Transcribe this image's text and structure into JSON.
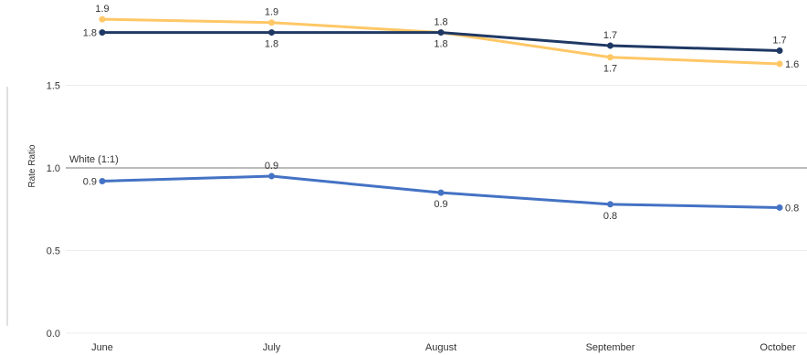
{
  "chart_data": {
    "type": "line",
    "title": "",
    "xlabel": "",
    "ylabel": "Rate Ratio",
    "categories": [
      "June",
      "July",
      "August",
      "September",
      "October"
    ],
    "ylim": [
      0,
      2.0
    ],
    "yticks": [
      0.0,
      0.5,
      1.0,
      1.5
    ],
    "ytick_labels": [
      "0.0",
      "0.5",
      "1.0",
      "1.5"
    ],
    "grid": true,
    "legend": "none",
    "reference_line": {
      "value": 1.0,
      "label": "White (1:1)",
      "color": "#a6a6a6"
    },
    "series": [
      {
        "color": "#ffc766",
        "values": [
          1.9,
          1.88,
          1.82,
          1.67,
          1.63
        ],
        "labels": [
          "1.9",
          "1.9",
          "1.8",
          "1.7",
          "1.6"
        ],
        "label_pos": [
          "above",
          "above",
          "below",
          "below",
          "right"
        ]
      },
      {
        "color": "#1f3864",
        "values": [
          1.82,
          1.82,
          1.82,
          1.74,
          1.71
        ],
        "labels": [
          "1.8",
          "1.8",
          "1.8",
          "1.7",
          "1.7"
        ],
        "label_pos": [
          "left",
          "below",
          "above",
          "above",
          "above"
        ]
      },
      {
        "color": "#4472c4",
        "values": [
          0.92,
          0.95,
          0.85,
          0.78,
          0.76
        ],
        "labels": [
          "0.9",
          "0.9",
          "0.9",
          "0.8",
          "0.8"
        ],
        "label_pos": [
          "left",
          "above",
          "below",
          "below",
          "right"
        ]
      }
    ]
  }
}
